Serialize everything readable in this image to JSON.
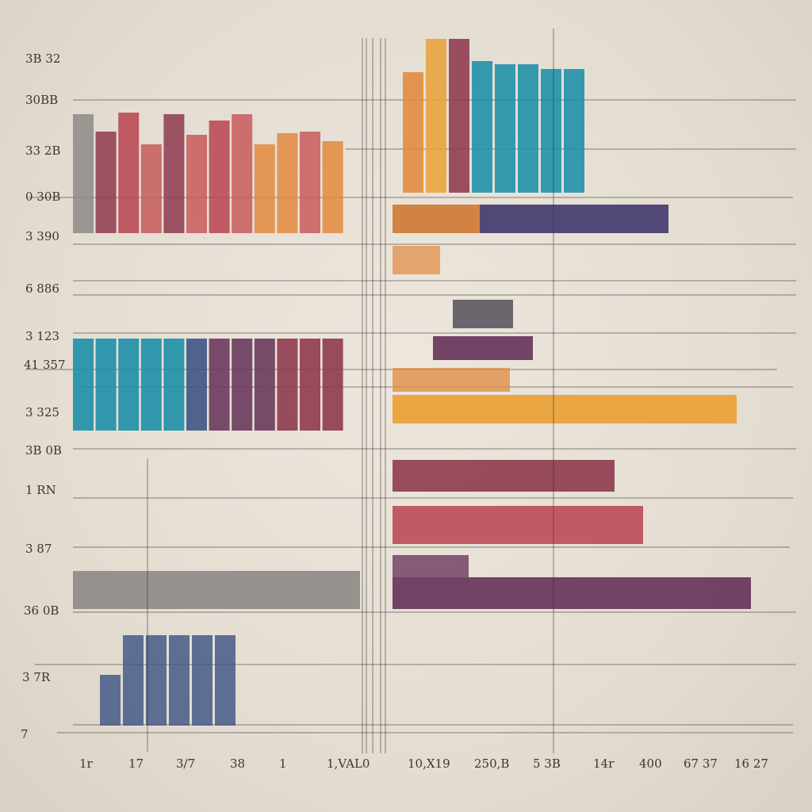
{
  "chart_data": {
    "type": "bar",
    "title": "",
    "xlabel": "",
    "ylabel": "",
    "grid": true,
    "y_tick_labels": [
      "3B 32",
      "30BB",
      "33 2B",
      "0 30B",
      "3 390",
      "6 886",
      "3 123",
      "41 357",
      "3 325",
      "3B 0B",
      "1 RN",
      "3 87",
      "36 0B",
      "3 7R",
      "7"
    ],
    "x_tick_labels": [
      "1r",
      "17",
      "3/7",
      "38",
      "1",
      "1,VAL0",
      "10,X19",
      "250,B",
      "5 3B",
      "14r",
      "400",
      "67 37",
      "16 27"
    ],
    "colors": {
      "grey": "#8f8a87",
      "wine": "#8e3a4e",
      "red": "#b8434f",
      "rose": "#c75a5c",
      "orange": "#e08a3e",
      "amber": "#e9a23b",
      "teal": "#1d8fa8",
      "plum": "#6b3a5e",
      "navy": "#3f5585",
      "violet": "#4a3f72",
      "slate": "#5d5861"
    },
    "groups": [
      {
        "name": "",
        "orientation": "vertical",
        "values": [
          150,
          128,
          152,
          112,
          150,
          124,
          142,
          150,
          112,
          126,
          128,
          116
        ],
        "colors": [
          "grey",
          "wine",
          "red",
          "rose",
          "wine",
          "rose",
          "red",
          "rose",
          "orange",
          "orange",
          "rose",
          "orange"
        ]
      },
      {
        "name": "",
        "orientation": "vertical",
        "values": [
          152,
          194,
          194,
          166,
          162,
          162,
          156,
          156
        ],
        "colors": [
          "orange",
          "amber",
          "wine",
          "teal",
          "teal",
          "teal",
          "teal",
          "teal"
        ]
      },
      {
        "name": "",
        "orientation": "vertical",
        "values": [
          116,
          116,
          116,
          116,
          116,
          116,
          116,
          116,
          116,
          116,
          116,
          116
        ],
        "colors": [
          "teal",
          "teal",
          "teal",
          "teal",
          "teal",
          "navy",
          "plum",
          "plum",
          "plum",
          "wine",
          "wine",
          "wine"
        ]
      },
      {
        "name": "",
        "orientation": "vertical",
        "values": [
          64,
          114,
          114,
          114,
          114,
          114
        ],
        "colors": [
          "navy",
          "navy",
          "navy",
          "navy",
          "navy",
          "navy"
        ]
      },
      {
        "name": "",
        "orientation": "horizontal",
        "values": [
          362,
          48
        ],
        "colors": [
          "grey",
          "grey"
        ]
      },
      {
        "name": "",
        "orientation": "horizontal",
        "values": [
          348,
          110,
          60,
          76,
          126,
          148,
          434,
          280,
          316,
          96,
          452
        ],
        "colors": [
          "violet",
          "orange",
          "orange",
          "slate",
          "plum",
          "orange",
          "amber",
          "wine",
          "red",
          "plum",
          "plum"
        ]
      }
    ]
  }
}
